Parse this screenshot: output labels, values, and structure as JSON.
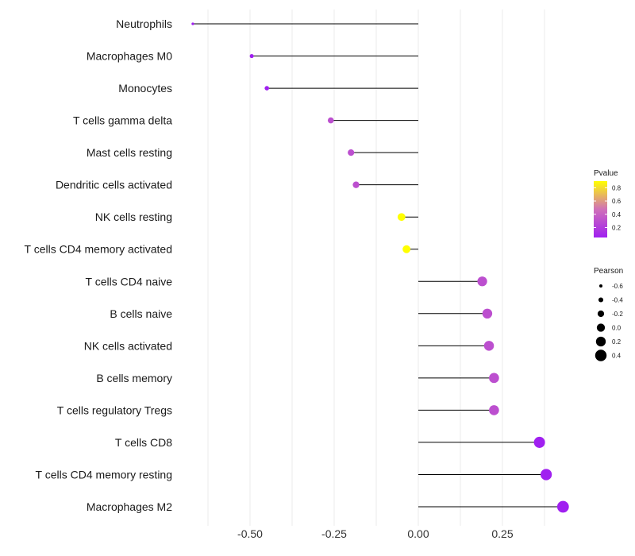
{
  "chart_data": {
    "type": "lollipop",
    "title": "",
    "xlabel": "",
    "ylabel": "",
    "xlim": [
      -0.75,
      0.45
    ],
    "x_ticks": [
      -0.5,
      -0.25,
      0.0,
      0.25
    ],
    "x_tick_labels": [
      "-0.50",
      "-0.25",
      "0.00",
      "0.25"
    ],
    "grid": true,
    "categories": [
      "Neutrophils",
      "Macrophages M0",
      "Monocytes",
      "T cells gamma delta",
      "Mast cells resting",
      "Dendritic cells activated",
      "NK cells resting",
      "T cells CD4 memory activated",
      "T cells CD4 naive",
      "B cells naive",
      "NK cells activated",
      "B cells memory",
      "T cells regulatory  Tregs ",
      "T cells CD8",
      "T cells CD4 memory resting",
      "Macrophages M2"
    ],
    "pearson": [
      -0.67,
      -0.495,
      -0.45,
      -0.26,
      -0.2,
      -0.185,
      -0.05,
      -0.035,
      0.19,
      0.205,
      0.21,
      0.225,
      0.225,
      0.36,
      0.38,
      0.43
    ],
    "pvalue": [
      0.05,
      0.05,
      0.05,
      0.3,
      0.3,
      0.3,
      0.9,
      0.9,
      0.3,
      0.3,
      0.3,
      0.3,
      0.3,
      0.05,
      0.05,
      0.05
    ],
    "legend": {
      "color": {
        "title": "Pvalue",
        "range": [
          0.05,
          0.9
        ],
        "ticks": [
          0.2,
          0.4,
          0.6,
          0.8
        ],
        "tick_labels": [
          "0.2",
          "0.4",
          "0.6",
          "0.8"
        ],
        "low_color": "#a020f0",
        "mid_color": "#d070b8",
        "high_color": "#ffff00"
      },
      "size": {
        "title": "Pearson",
        "values": [
          -0.6,
          -0.4,
          -0.2,
          0.0,
          0.2,
          0.4
        ],
        "labels": [
          "-0.6",
          "-0.4",
          "-0.2",
          "0.0",
          "0.2",
          "0.4"
        ]
      },
      "position": "right"
    }
  }
}
